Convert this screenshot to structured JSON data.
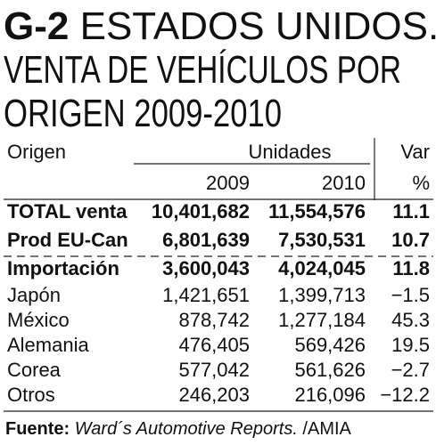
{
  "header": {
    "code": "G-2",
    "title_lines": [
      "ESTADOS UNIDOS.",
      "VENTA DE VEHÍCULOS POR",
      "ORIGEN 2009-2010"
    ]
  },
  "table": {
    "columns": {
      "origin": "Origen",
      "units": "Unidades",
      "var": "Var",
      "year_a": "2009",
      "year_b": "2010",
      "var_unit": "%"
    },
    "rows": [
      [
        "TOTAL venta",
        "10,401,682",
        "11,554,576",
        "11.1"
      ],
      [
        "Prod EU-Can",
        "6,801,639",
        "7,530,531",
        "10.7"
      ],
      [
        "Importación",
        "3,600,043",
        "4,024,045",
        "11.8"
      ],
      [
        "Japón",
        "1,421,651",
        "1,399,713",
        "−1.5"
      ],
      [
        "México",
        "878,742",
        "1,277,184",
        "45.3"
      ],
      [
        "Alemania",
        "476,405",
        "569,426",
        "19.5"
      ],
      [
        "Corea",
        "577,042",
        "561,626",
        "−2.7"
      ],
      [
        "Otros",
        "246,203",
        "216,096",
        "−12.2"
      ]
    ]
  },
  "footer": {
    "label": "Fuente:",
    "source": "Ward´s Automotive Reports.",
    "agency": " /AMIA"
  }
}
